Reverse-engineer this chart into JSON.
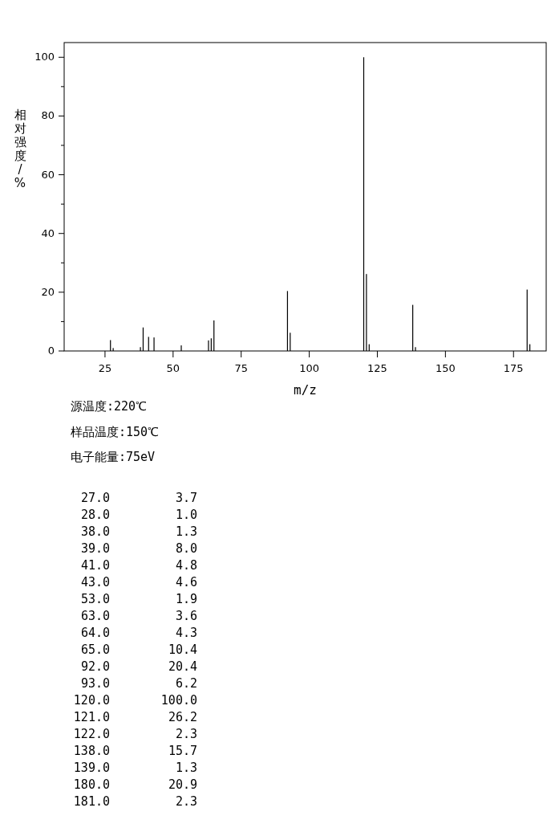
{
  "chart_data": {
    "type": "bar",
    "xlabel": "m/z",
    "ylabel": "相对强度/%",
    "x": [
      27,
      28,
      38,
      39,
      41,
      43,
      53,
      63,
      64,
      65,
      92,
      93,
      120,
      121,
      122,
      138,
      139,
      180,
      181
    ],
    "values": [
      3.7,
      1.0,
      1.3,
      8.0,
      4.8,
      4.6,
      1.9,
      3.6,
      4.3,
      10.4,
      20.4,
      6.2,
      100.0,
      26.2,
      2.3,
      15.7,
      1.3,
      20.9,
      2.3
    ],
    "color": "#000000",
    "xlim": [
      10,
      187
    ],
    "ylim": [
      0,
      105
    ],
    "xticks": [
      25,
      50,
      75,
      100,
      125,
      150,
      175
    ],
    "yticks": [
      0,
      {
        "value": 10,
        "label": null
      },
      20,
      {
        "value": 30,
        "label": null
      },
      40,
      {
        "value": 50,
        "label": null
      },
      60,
      {
        "value": 70,
        "label": null
      },
      80,
      {
        "value": 90,
        "label": null
      },
      100
    ],
    "annotations": [
      "源温度:220℃",
      "样品温度:150℃",
      "电子能量:75eV",
      "27.0",
      "3.7",
      "28.0",
      "1.0",
      "38.0",
      "1.3",
      "39.0",
      "8.0",
      "41.0",
      "4.8",
      "43.0",
      "4.6",
      "53.0",
      "1.9",
      "63.0",
      "3.6",
      "64.0",
      "4.3",
      "65.0",
      "10.4",
      "92.0",
      "20.4",
      "93.0",
      "6.2",
      "120.0",
      "100.0",
      "121.0",
      "26.2",
      "122.0",
      "2.3",
      "138.0",
      "15.7",
      "139.0",
      "1.3",
      "180.0",
      "20.9",
      "181.0",
      "2.3"
    ]
  }
}
